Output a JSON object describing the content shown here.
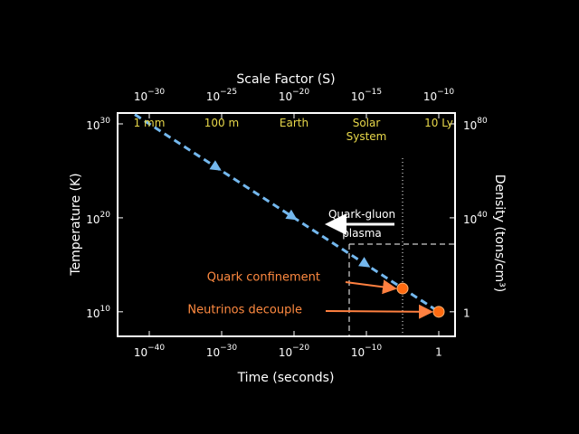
{
  "chart_data": {
    "type": "line",
    "x_label": "Time (seconds)",
    "y_label": "Temperature (K)",
    "y2_label": "Density (tons/cm³)",
    "x2_label": "Scale Factor (S)",
    "xscale": "log",
    "yscale": "log",
    "xlim": [
      1e-44,
      100
    ],
    "ylim": [
      10000000.0,
      1e+31
    ],
    "y2lim": [
      1e-12,
      1e+84
    ],
    "x2lim": [
      1e-32,
      1e-09
    ],
    "xticks": [
      {
        "value": 1e-40,
        "label": "10",
        "sup": "−40"
      },
      {
        "value": 1e-30,
        "label": "10",
        "sup": "−30"
      },
      {
        "value": 1e-20,
        "label": "10",
        "sup": "−20"
      },
      {
        "value": 1e-10,
        "label": "10",
        "sup": "−10"
      },
      1
    ],
    "yticks": [
      {
        "value": 1e+30,
        "label": "10",
        "sup": "30"
      },
      {
        "value": 1e+20,
        "label": "10",
        "sup": "20"
      },
      {
        "value": 10000000000.0,
        "label": "10",
        "sup": "10"
      }
    ],
    "y2ticks": [
      {
        "value": 1e+80,
        "label": "10",
        "sup": "80"
      },
      {
        "value": 1e+40,
        "label": "10",
        "sup": "40"
      },
      1
    ],
    "x2ticks": [
      {
        "value": 1e-30,
        "label": "10",
        "sup": "−30"
      },
      {
        "value": 1e-25,
        "label": "10",
        "sup": "−25"
      },
      {
        "value": 1e-20,
        "label": "10",
        "sup": "−20"
      },
      {
        "value": 1e-15,
        "label": "10",
        "sup": "−15"
      },
      {
        "value": 1e-10,
        "label": "10",
        "sup": "−10"
      }
    ],
    "scale_names": [
      {
        "value": 1e-30,
        "label": "1 mm"
      },
      {
        "value": 1e-25,
        "label": "100 m"
      },
      {
        "value": 1e-20,
        "label": "Earth"
      },
      {
        "value": 1e-15,
        "label": "Solar System"
      },
      {
        "value": 1e-10,
        "label": "10 Ly"
      }
    ],
    "scale_name_color": "#e8d84a",
    "series": [
      {
        "color": "#74b8ee",
        "x": [
          1e-42,
          1
        ],
        "values": [
          1e+31,
          10000000000.0
        ]
      }
    ],
    "points": [
      {
        "label": "Quark confinement",
        "x": 1e-05,
        "y": 3000000000000.0,
        "color": "#ff6a10"
      },
      {
        "label": "Neutrinos decouple",
        "x": 1,
        "y": 10000000000.0,
        "color": "#ff6a10"
      }
    ],
    "region_label": "Quark-gluon plasma"
  }
}
